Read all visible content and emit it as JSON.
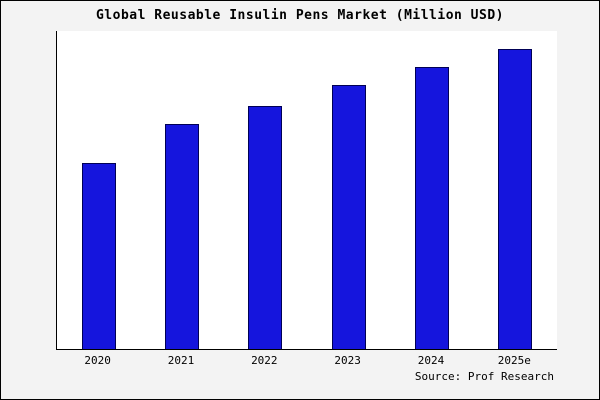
{
  "chart_data": {
    "type": "bar",
    "title": "Global Reusable Insulin Pens Market (Million USD)",
    "categories": [
      "2020",
      "2021",
      "2022",
      "2023",
      "2024",
      "2025e"
    ],
    "values": [
      62,
      75,
      81,
      88,
      94,
      100
    ],
    "xlabel": "",
    "ylabel": "",
    "ylim": [
      0,
      106
    ],
    "grid": false,
    "legend": "none",
    "note": "y-axis has no tick labels; values are relative estimates scaled so 2025e = 100"
  },
  "source": "Source: Prof Research",
  "colors": {
    "bar_fill": "#1515dd",
    "bar_border": "#000055",
    "background": "#f3f3f3",
    "plot_background": "#ffffff",
    "axis": "#000000"
  }
}
